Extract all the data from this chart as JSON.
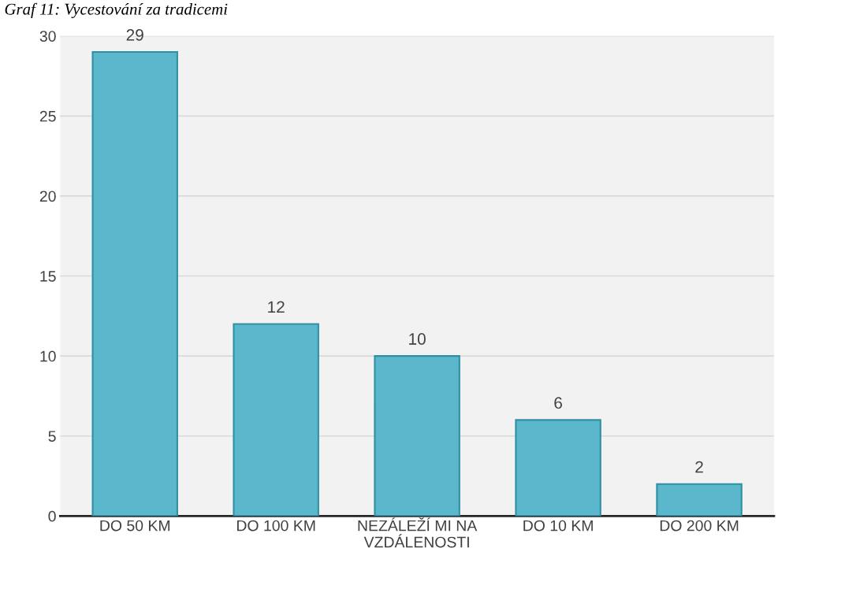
{
  "chart_data": {
    "type": "bar",
    "title": "Graf 11: Vycestování za tradicemi",
    "categories": [
      "DO 50 KM",
      "DO 100 KM",
      "NEZÁLEŽÍ MI NA VZDÁLENOSTI",
      "DO 10 KM",
      "DO 200 KM"
    ],
    "values": [
      29,
      12,
      10,
      6,
      2
    ],
    "color": "#5bb8cc",
    "ylim": [
      0,
      30
    ],
    "yticks": [
      0,
      5,
      10,
      15,
      20,
      25,
      30
    ],
    "grid": "y",
    "data_labels": true
  }
}
